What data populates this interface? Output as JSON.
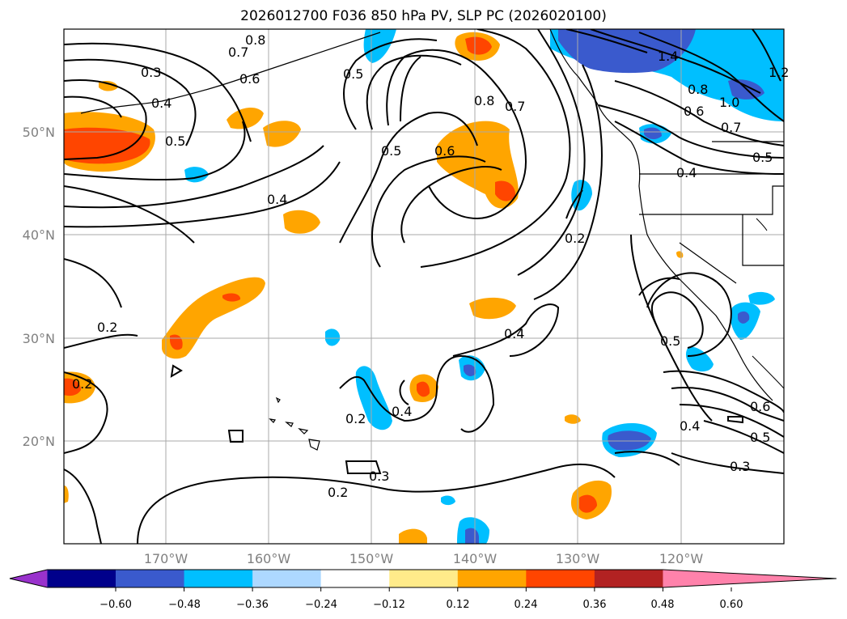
{
  "title": "2026012700 F036 850 hPa PV, SLP PC (2026020100)",
  "map": {
    "lat_labels": [
      "50°N",
      "40°N",
      "30°N",
      "20°N"
    ],
    "lon_labels": [
      "170°W",
      "160°W",
      "150°W",
      "140°W",
      "130°W",
      "120°W"
    ],
    "contour_labels": [
      "0.8",
      "0.7",
      "0.6",
      "0.3",
      "0.4",
      "0.5",
      "0.5",
      "0.8",
      "0.7",
      "0.5",
      "0.6",
      "1.4",
      "1.2",
      "0.8",
      "1.0",
      "0.6",
      "0.7",
      "0.5",
      "0.4",
      "0.4",
      "0.2",
      "0.2",
      "0.4",
      "0.5",
      "0.2",
      "0.2",
      "0.4",
      "0.6",
      "0.4",
      "0.5",
      "0.3",
      "0.3",
      "0.2"
    ]
  },
  "colorbar": {
    "ticks": [
      "−0.60",
      "−0.48",
      "−0.36",
      "−0.24",
      "−0.12",
      "0.12",
      "0.24",
      "0.36",
      "0.48",
      "0.60"
    ],
    "colors": [
      "#9932cc",
      "#00008b",
      "#3a5acd",
      "#00bfff",
      "#add8ff",
      "#ffffff",
      "#ffeb8a",
      "#ffa500",
      "#ff4500",
      "#b22222",
      "#ff82ab"
    ]
  }
}
